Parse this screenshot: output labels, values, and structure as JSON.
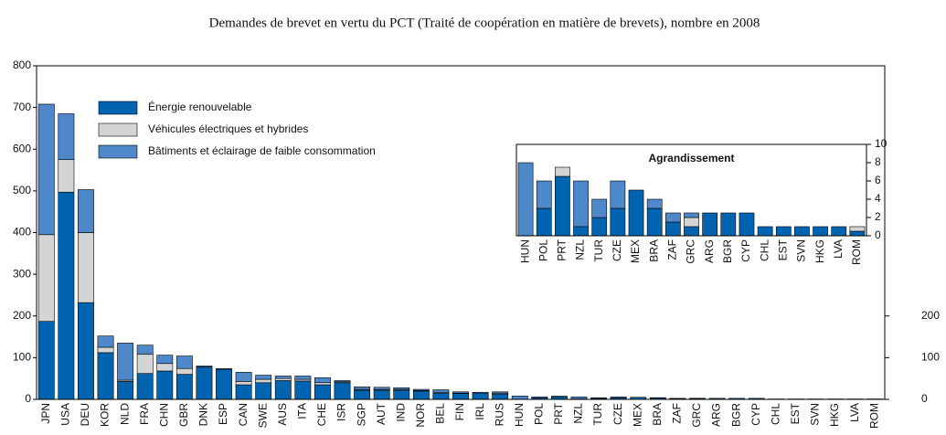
{
  "chart_data": [
    {
      "type": "bar",
      "stacked": true,
      "title": "Demandes de brevet en vertu du PCT (Traité de coopération en matière de brevets), nombre en 2008",
      "categories": [
        "JPN",
        "USA",
        "DEU",
        "KOR",
        "NLD",
        "FRA",
        "CHN",
        "GBR",
        "DNK",
        "ESP",
        "CAN",
        "SWE",
        "AUS",
        "ITA",
        "CHE",
        "ISR",
        "SGP",
        "AUT",
        "IND",
        "NOR",
        "BEL",
        "FIN",
        "IRL",
        "RUS",
        "HUN",
        "POL",
        "PRT",
        "NZL",
        "TUR",
        "CZE",
        "MEX",
        "BRA",
        "ZAF",
        "GRC",
        "ARG",
        "BGR",
        "CYP",
        "CHL",
        "EST",
        "SVN",
        "HKG",
        "LVA",
        "ROM"
      ],
      "series": [
        {
          "name": "Énergie renouvelable",
          "color": "#0064b0",
          "values": [
            187,
            497,
            232,
            112,
            43,
            62,
            68,
            60,
            78,
            72,
            35,
            40,
            45,
            44,
            35,
            40,
            22,
            22,
            22,
            20,
            15,
            14,
            15,
            13,
            0,
            3,
            6.5,
            1,
            2,
            3,
            5,
            3,
            1.5,
            1,
            2.5,
            2.5,
            2.5,
            1,
            1,
            1,
            1,
            1,
            0.5
          ]
        },
        {
          "name": "Véhicules électriques et hybrides",
          "color": "#d4d4d4",
          "values": [
            208,
            78,
            168,
            13,
            3,
            46,
            18,
            14,
            0,
            0,
            8,
            8,
            5,
            4,
            5,
            2,
            2,
            2,
            2,
            1,
            2,
            1,
            0,
            2,
            0,
            0,
            1,
            0,
            0,
            0,
            0,
            0,
            0,
            1,
            0,
            0,
            0,
            0,
            0,
            0,
            0,
            0,
            0.5
          ]
        },
        {
          "name": "Bâtiments et éclairage de faible consommation",
          "color": "#4f88c9",
          "values": [
            313,
            110,
            103,
            27,
            89,
            22,
            20,
            30,
            2,
            2,
            22,
            10,
            6,
            8,
            12,
            3,
            6,
            5,
            4,
            3,
            6,
            3,
            2,
            3,
            8,
            3,
            0,
            5,
            2,
            3,
            0,
            1,
            1,
            0.5,
            0,
            0,
            0,
            0,
            0,
            0,
            0,
            0,
            0
          ]
        }
      ],
      "ylim": [
        0,
        800
      ],
      "yticks": [
        0,
        100,
        200,
        300,
        400,
        500,
        600,
        700,
        800
      ],
      "y2lim": [
        0,
        800
      ],
      "y2ticks": [
        0,
        100,
        200
      ],
      "legend": "upper left"
    },
    {
      "type": "bar",
      "stacked": true,
      "title": "Agrandissement",
      "categories": [
        "HUN",
        "POL",
        "PRT",
        "NZL",
        "TUR",
        "CZE",
        "MEX",
        "BRA",
        "ZAF",
        "GRC",
        "ARG",
        "BGR",
        "CYP",
        "CHL",
        "EST",
        "SVN",
        "HKG",
        "LVA",
        "ROM"
      ],
      "series": [
        {
          "name": "Énergie renouvelable",
          "color": "#0064b0",
          "values": [
            0,
            3,
            6.5,
            1,
            2,
            3,
            5,
            3,
            1.5,
            1,
            2.5,
            2.5,
            2.5,
            1,
            1,
            1,
            1,
            1,
            0.5
          ]
        },
        {
          "name": "Véhicules électriques et hybrides",
          "color": "#d4d4d4",
          "values": [
            0,
            0,
            1,
            0,
            0,
            0,
            0,
            0,
            0,
            1,
            0,
            0,
            0,
            0,
            0,
            0,
            0,
            0,
            0.5
          ]
        },
        {
          "name": "Bâtiments et éclairage de faible consommation",
          "color": "#4f88c9",
          "values": [
            8,
            3,
            0,
            5,
            2,
            3,
            0,
            1,
            1,
            0.5,
            0,
            0,
            0,
            0,
            0,
            0,
            0,
            0,
            0
          ]
        }
      ],
      "ylim": [
        0,
        10
      ],
      "yticks": [
        0,
        2,
        4,
        6,
        8,
        10
      ]
    }
  ]
}
